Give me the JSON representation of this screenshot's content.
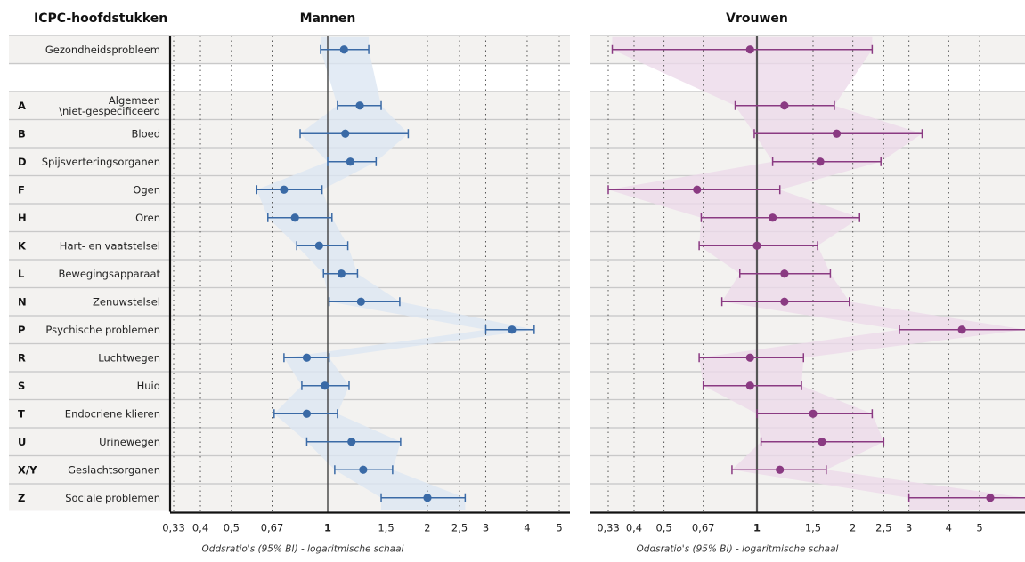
{
  "chart_data": {
    "type": "forest",
    "scale": "log",
    "reference_value": 1,
    "xlim": [
      0.33,
      5.0
    ],
    "xticks": [
      0.33,
      0.4,
      0.5,
      0.67,
      1,
      1.5,
      2,
      2.5,
      3,
      4,
      5
    ],
    "xtick_labels": [
      "0,33",
      "0,4",
      "0,5",
      "0,67",
      "1",
      "1,5",
      "2",
      "2,5",
      "3",
      "4",
      "5"
    ],
    "category_header": "ICPC-hoofdstukken",
    "xlabel": "Oddsratio's (95% BI) - logaritmische schaal",
    "rows": [
      {
        "code": "",
        "label": "Gezondheidsprobleem"
      },
      {
        "code": "",
        "label": ""
      },
      {
        "code": "A",
        "label": "Algemeen\n\\niet-gespecificeerd"
      },
      {
        "code": "B",
        "label": "Bloed"
      },
      {
        "code": "D",
        "label": "Spijsverteringsorganen"
      },
      {
        "code": "F",
        "label": "Ogen"
      },
      {
        "code": "H",
        "label": "Oren"
      },
      {
        "code": "K",
        "label": "Hart- en vaatstelsel"
      },
      {
        "code": "L",
        "label": "Bewegingsapparaat"
      },
      {
        "code": "N",
        "label": "Zenuwstelsel"
      },
      {
        "code": "P",
        "label": "Psychische problemen"
      },
      {
        "code": "R",
        "label": "Luchtwegen"
      },
      {
        "code": "S",
        "label": "Huid"
      },
      {
        "code": "T",
        "label": "Endocriene klieren"
      },
      {
        "code": "U",
        "label": "Urinewegen"
      },
      {
        "code": "X/Y",
        "label": "Geslachtsorganen"
      },
      {
        "code": "Z",
        "label": "Sociale problemen"
      }
    ],
    "panels": [
      {
        "title": "Mannen",
        "color": "#3a6aa6",
        "band_color": "#dce6f2",
        "points": [
          {
            "or": 1.12,
            "lo": 0.95,
            "hi": 1.33
          },
          null,
          {
            "or": 1.25,
            "lo": 1.07,
            "hi": 1.45
          },
          {
            "or": 1.13,
            "lo": 0.82,
            "hi": 1.75
          },
          {
            "or": 1.17,
            "lo": 1.0,
            "hi": 1.4
          },
          {
            "or": 0.73,
            "lo": 0.6,
            "hi": 0.96
          },
          {
            "or": 0.79,
            "lo": 0.65,
            "hi": 1.03
          },
          {
            "or": 0.94,
            "lo": 0.8,
            "hi": 1.15
          },
          {
            "or": 1.1,
            "lo": 0.97,
            "hi": 1.23
          },
          {
            "or": 1.26,
            "lo": 1.01,
            "hi": 1.65
          },
          {
            "or": 3.6,
            "lo": 3.0,
            "hi": 4.2
          },
          {
            "or": 0.86,
            "lo": 0.73,
            "hi": 1.01
          },
          {
            "or": 0.98,
            "lo": 0.83,
            "hi": 1.16
          },
          {
            "or": 0.86,
            "lo": 0.68,
            "hi": 1.07
          },
          {
            "or": 1.18,
            "lo": 0.86,
            "hi": 1.66
          },
          {
            "or": 1.28,
            "lo": 1.05,
            "hi": 1.57
          },
          {
            "or": 2.0,
            "lo": 1.45,
            "hi": 2.6
          }
        ]
      },
      {
        "title": "Vrouwen",
        "color": "#8a3a82",
        "band_color": "#ecdaea",
        "points": [
          {
            "or": 0.95,
            "lo": 0.34,
            "hi": 2.3
          },
          null,
          {
            "or": 1.22,
            "lo": 0.85,
            "hi": 1.75
          },
          {
            "or": 1.78,
            "lo": 0.98,
            "hi": 3.3
          },
          {
            "or": 1.58,
            "lo": 1.12,
            "hi": 2.45
          },
          {
            "or": 0.64,
            "lo": 0.33,
            "hi": 1.18
          },
          {
            "or": 1.12,
            "lo": 0.66,
            "hi": 2.1
          },
          {
            "or": 1.0,
            "lo": 0.65,
            "hi": 1.55
          },
          {
            "or": 1.22,
            "lo": 0.88,
            "hi": 1.7
          },
          {
            "or": 1.22,
            "lo": 0.77,
            "hi": 1.95
          },
          {
            "or": 4.4,
            "lo": 2.8,
            "hi": 7.0
          },
          {
            "or": 0.95,
            "lo": 0.65,
            "hi": 1.4
          },
          {
            "or": 0.95,
            "lo": 0.67,
            "hi": 1.38
          },
          {
            "or": 1.5,
            "lo": 1.0,
            "hi": 2.3
          },
          {
            "or": 1.6,
            "lo": 1.03,
            "hi": 2.5
          },
          {
            "or": 1.18,
            "lo": 0.83,
            "hi": 1.65
          },
          {
            "or": 5.4,
            "lo": 3.0,
            "hi": 7.0
          }
        ]
      }
    ]
  }
}
